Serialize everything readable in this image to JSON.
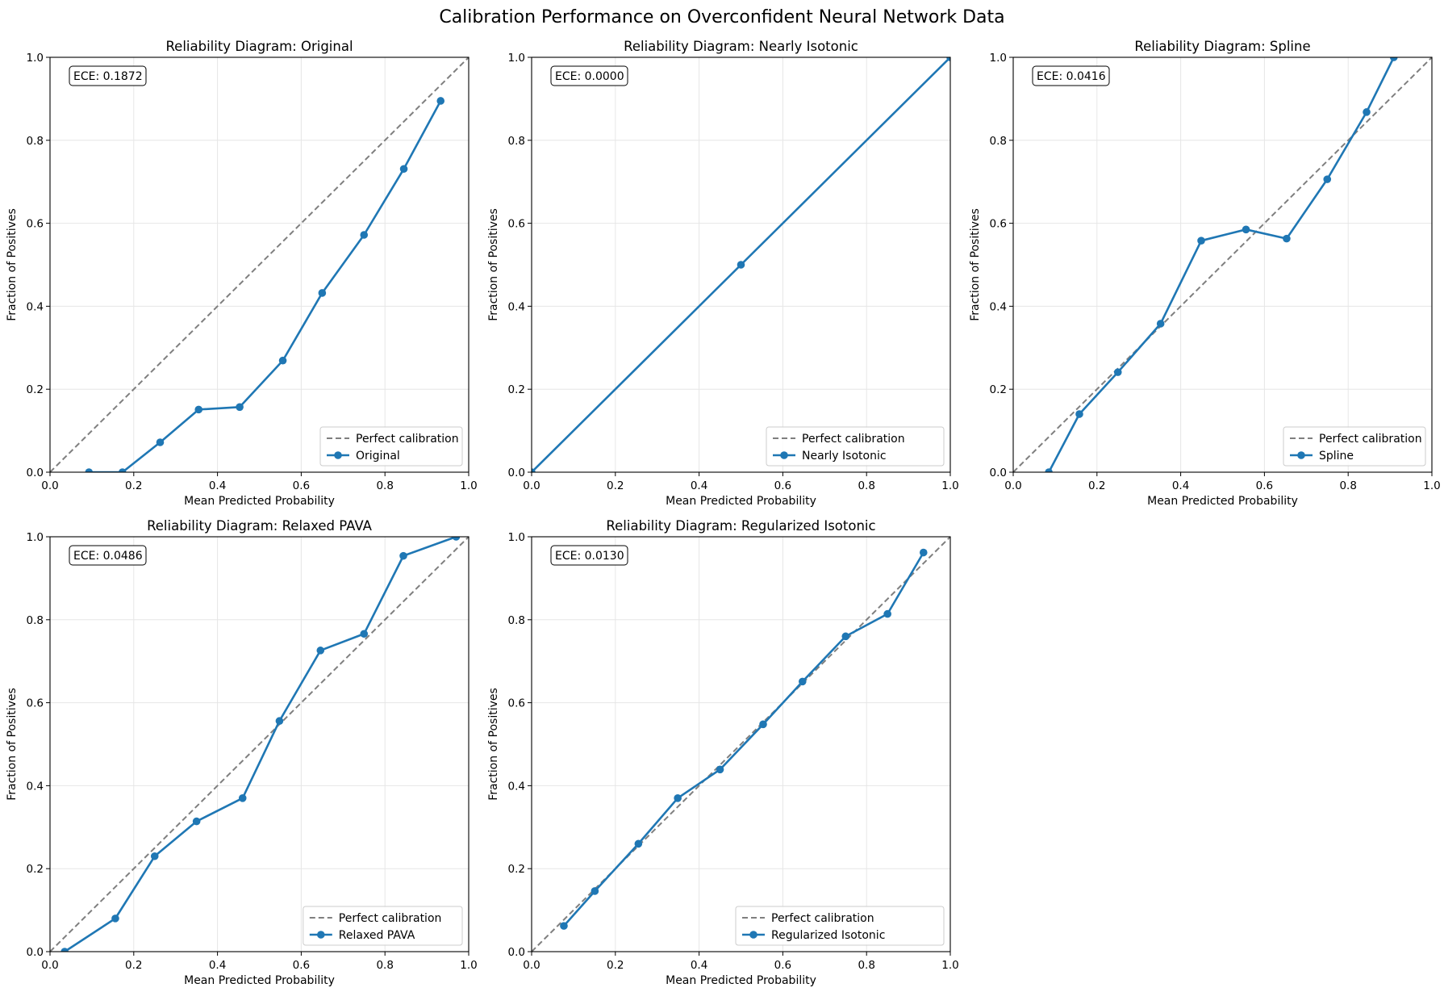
{
  "figure": {
    "title": "Calibration Performance on Overconfident Neural Network Data"
  },
  "colors": {
    "series": "#1f77b4",
    "reference": "#7f7f7f",
    "grid": "#e6e6e6"
  },
  "chart_data": [
    {
      "type": "line",
      "title": "Reliability Diagram: Original",
      "xlabel": "Mean Predicted Probability",
      "ylabel": "Fraction of Positives",
      "xlim": [
        0,
        1
      ],
      "ylim": [
        0,
        1
      ],
      "xticks": [
        "0.0",
        "0.2",
        "0.4",
        "0.6",
        "0.8",
        "1.0"
      ],
      "yticks": [
        "0.0",
        "0.2",
        "0.4",
        "0.6",
        "0.8",
        "1.0"
      ],
      "grid": true,
      "legend_position": "lower-right",
      "annotation": "ECE: 0.1872",
      "reference": {
        "name": "Perfect calibration",
        "x": [
          0,
          1
        ],
        "y": [
          0,
          1
        ]
      },
      "series": [
        {
          "name": "Original",
          "x": [
            0.093,
            0.173,
            0.263,
            0.355,
            0.453,
            0.556,
            0.65,
            0.75,
            0.845,
            0.933
          ],
          "y": [
            0.0,
            0.0,
            0.072,
            0.151,
            0.157,
            0.269,
            0.432,
            0.572,
            0.731,
            0.895
          ]
        }
      ]
    },
    {
      "type": "line",
      "title": "Reliability Diagram: Nearly Isotonic",
      "xlabel": "Mean Predicted Probability",
      "ylabel": "Fraction of Positives",
      "xlim": [
        0,
        1
      ],
      "ylim": [
        0,
        1
      ],
      "xticks": [
        "0.0",
        "0.2",
        "0.4",
        "0.6",
        "0.8",
        "1.0"
      ],
      "yticks": [
        "0.0",
        "0.2",
        "0.4",
        "0.6",
        "0.8",
        "1.0"
      ],
      "grid": true,
      "legend_position": "lower-right",
      "annotation": "ECE: 0.0000",
      "reference": {
        "name": "Perfect calibration",
        "x": [
          0,
          1
        ],
        "y": [
          0,
          1
        ]
      },
      "series": [
        {
          "name": "Nearly Isotonic",
          "x": [
            0.0,
            0.5,
            1.0
          ],
          "y": [
            0.0,
            0.5,
            1.0
          ]
        }
      ]
    },
    {
      "type": "line",
      "title": "Reliability Diagram: Spline",
      "xlabel": "Mean Predicted Probability",
      "ylabel": "Fraction of Positives",
      "xlim": [
        0,
        1
      ],
      "ylim": [
        0,
        1
      ],
      "xticks": [
        "0.0",
        "0.2",
        "0.4",
        "0.6",
        "0.8",
        "1.0"
      ],
      "yticks": [
        "0.0",
        "0.2",
        "0.4",
        "0.6",
        "0.8",
        "1.0"
      ],
      "grid": true,
      "legend_position": "lower-right",
      "annotation": "ECE: 0.0416",
      "reference": {
        "name": "Perfect calibration",
        "x": [
          0,
          1
        ],
        "y": [
          0,
          1
        ]
      },
      "series": [
        {
          "name": "Spline",
          "x": [
            0.085,
            0.158,
            0.25,
            0.352,
            0.449,
            0.556,
            0.653,
            0.75,
            0.844,
            0.909
          ],
          "y": [
            0.0,
            0.14,
            0.241,
            0.358,
            0.558,
            0.585,
            0.563,
            0.706,
            0.868,
            1.0
          ]
        }
      ]
    },
    {
      "type": "line",
      "title": "Reliability Diagram: Relaxed PAVA",
      "xlabel": "Mean Predicted Probability",
      "ylabel": "Fraction of Positives",
      "xlim": [
        0,
        1
      ],
      "ylim": [
        0,
        1
      ],
      "xticks": [
        "0.0",
        "0.2",
        "0.4",
        "0.6",
        "0.8",
        "1.0"
      ],
      "yticks": [
        "0.0",
        "0.2",
        "0.4",
        "0.6",
        "0.8",
        "1.0"
      ],
      "grid": true,
      "legend_position": "lower-right",
      "annotation": "ECE: 0.0486",
      "reference": {
        "name": "Perfect calibration",
        "x": [
          0,
          1
        ],
        "y": [
          0,
          1
        ]
      },
      "series": [
        {
          "name": "Relaxed PAVA",
          "x": [
            0.035,
            0.156,
            0.25,
            0.35,
            0.46,
            0.548,
            0.646,
            0.75,
            0.844,
            0.97
          ],
          "y": [
            0.0,
            0.08,
            0.23,
            0.314,
            0.37,
            0.556,
            0.726,
            0.766,
            0.954,
            1.0
          ]
        }
      ]
    },
    {
      "type": "line",
      "title": "Reliability Diagram: Regularized Isotonic",
      "xlabel": "Mean Predicted Probability",
      "ylabel": "Fraction of Positives",
      "xlim": [
        0,
        1
      ],
      "ylim": [
        0,
        1
      ],
      "xticks": [
        "0.0",
        "0.2",
        "0.4",
        "0.6",
        "0.8",
        "1.0"
      ],
      "yticks": [
        "0.0",
        "0.2",
        "0.4",
        "0.6",
        "0.8",
        "1.0"
      ],
      "grid": true,
      "legend_position": "lower-right",
      "annotation": "ECE: 0.0130",
      "reference": {
        "name": "Perfect calibration",
        "x": [
          0,
          1
        ],
        "y": [
          0,
          1
        ]
      },
      "series": [
        {
          "name": "Regularized Isotonic",
          "x": [
            0.077,
            0.151,
            0.255,
            0.349,
            0.45,
            0.553,
            0.647,
            0.75,
            0.85,
            0.936
          ],
          "y": [
            0.062,
            0.146,
            0.26,
            0.37,
            0.439,
            0.548,
            0.651,
            0.76,
            0.814,
            0.962
          ]
        }
      ]
    }
  ]
}
